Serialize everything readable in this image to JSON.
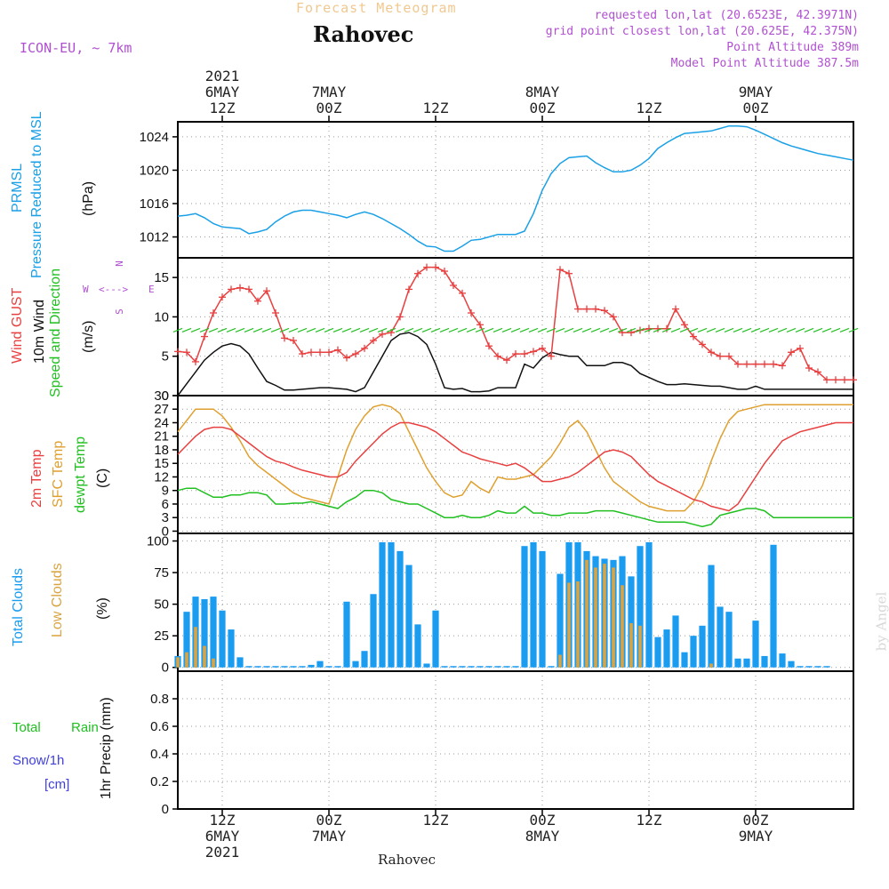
{
  "header": {
    "subtitle": "Forecast Meteogram",
    "location": "Rahovec",
    "model": "ICON-EU, ~ 7km",
    "requested": "requested lon,lat (20.6523E, 42.3971N)",
    "gridpoint": "grid point closest lon,lat (20.625E, 42.375N)",
    "point_alt": "Point Altitude 389m",
    "model_alt": "Model Point Altitude 387.5m",
    "watermark": "by Angel",
    "footer": "Rahovec"
  },
  "time_axis": {
    "top_ticks": [
      {
        "line1": "2021",
        "line2": "6MAY",
        "line3": "12Z"
      },
      {
        "line1": "",
        "line2": "7MAY",
        "line3": "00Z"
      },
      {
        "line1": "",
        "line2": "",
        "line3": "12Z"
      },
      {
        "line1": "",
        "line2": "8MAY",
        "line3": "00Z"
      },
      {
        "line1": "",
        "line2": "",
        "line3": "12Z"
      },
      {
        "line1": "",
        "line2": "9MAY",
        "line3": "00Z"
      }
    ],
    "bottom_ticks": [
      {
        "line1": "12Z",
        "line2": "6MAY",
        "line3": "2021"
      },
      {
        "line1": "00Z",
        "line2": "7MAY",
        "line3": ""
      },
      {
        "line1": "12Z",
        "line2": "",
        "line3": ""
      },
      {
        "line1": "00Z",
        "line2": "8MAY",
        "line3": ""
      },
      {
        "line1": "12Z",
        "line2": "",
        "line3": ""
      },
      {
        "line1": "00Z",
        "line2": "9MAY",
        "line3": ""
      }
    ],
    "tick_hours": [
      8,
      20,
      32,
      44,
      56,
      68
    ],
    "hours_range": [
      3,
      79
    ]
  },
  "panels": {
    "pressure": {
      "label1": "PRMSL",
      "label2": "Pressure Reduced to MSL",
      "unit": "(hPa)"
    },
    "wind": {
      "label1": "Wind GUST",
      "label2": "10m Wind",
      "label3": "Speed and Direction",
      "unit": "(m/s)",
      "compass_n": "N",
      "compass_s": "S",
      "compass_w": "W",
      "compass_e": "E",
      "compass_arrow": "<--->"
    },
    "temp": {
      "label1": "2m Temp",
      "label2": "SFC Temp",
      "label3": "dewpt Temp",
      "unit": "(C)"
    },
    "clouds": {
      "label1": "Total Clouds",
      "label2": "Low Clouds",
      "unit": "(%)"
    },
    "precip": {
      "label1": "Total",
      "label1b": "Rain",
      "label2": "Snow/1h",
      "label3": "[cm]",
      "unit": "1hr Precip (mm)"
    }
  },
  "colors": {
    "pressure": "#1aa0e6",
    "gust": "#e84040",
    "wind": "#111111",
    "t2m": "#e84040",
    "tsfc": "#e0a030",
    "dewpt": "#20c020",
    "total_clouds": "#1a9cf0",
    "low_clouds": "#d9a441",
    "rain": "#20c020",
    "snow": "#4040e0",
    "direction": "#20c020",
    "meta": "#b050d0"
  },
  "chart_data": [
    {
      "type": "line",
      "title": "PRMSL Pressure Reduced to MSL",
      "ylabel": "hPa",
      "ylim": [
        1009.5,
        1025.8
      ],
      "yticks": [
        1012,
        1016,
        1020,
        1024
      ],
      "x": [
        3,
        4,
        5,
        6,
        7,
        8,
        9,
        10,
        11,
        12,
        13,
        14,
        15,
        16,
        17,
        18,
        19,
        20,
        21,
        22,
        23,
        24,
        25,
        26,
        27,
        28,
        29,
        30,
        31,
        32,
        33,
        34,
        35,
        36,
        37,
        38,
        39,
        40,
        41,
        42,
        43,
        44,
        45,
        46,
        47,
        48,
        49,
        50,
        51,
        52,
        53,
        54,
        55,
        56,
        57,
        58,
        59,
        60,
        61,
        62,
        63,
        64,
        65,
        66,
        67,
        68,
        69,
        70,
        71,
        72,
        73,
        74,
        75,
        76,
        77,
        78,
        79
      ],
      "series": [
        {
          "name": "PRMSL",
          "values": [
            1014.5,
            1014.6,
            1014.8,
            1014.3,
            1013.6,
            1013.2,
            1013.1,
            1013.0,
            1012.4,
            1012.6,
            1012.9,
            1013.8,
            1014.5,
            1015.0,
            1015.2,
            1015.2,
            1015.0,
            1014.8,
            1014.6,
            1014.3,
            1014.7,
            1015.0,
            1014.7,
            1014.2,
            1013.6,
            1013.0,
            1012.3,
            1011.5,
            1010.9,
            1010.8,
            1010.3,
            1010.3,
            1010.9,
            1011.6,
            1011.7,
            1012.0,
            1012.3,
            1012.3,
            1012.3,
            1012.7,
            1014.8,
            1017.6,
            1019.6,
            1020.8,
            1021.5,
            1021.6,
            1021.7,
            1020.9,
            1020.3,
            1019.8,
            1019.8,
            1020.0,
            1020.6,
            1021.4,
            1022.6,
            1023.3,
            1023.9,
            1024.4,
            1024.5,
            1024.6,
            1024.7,
            1025.0,
            1025.3,
            1025.3,
            1025.2,
            1024.8,
            1024.3,
            1023.8,
            1023.3,
            1022.9,
            1022.6,
            1022.3,
            1022.0,
            1021.8,
            1021.6,
            1021.4,
            1021.2
          ]
        }
      ]
    },
    {
      "type": "line",
      "title": "Wind GUST / 10m Wind Speed and Direction",
      "ylabel": "m/s",
      "ylim": [
        0,
        17.5
      ],
      "yticks": [
        0,
        5,
        10,
        15
      ],
      "x": [
        3,
        4,
        5,
        6,
        7,
        8,
        9,
        10,
        11,
        12,
        13,
        14,
        15,
        16,
        17,
        18,
        19,
        20,
        21,
        22,
        23,
        24,
        25,
        26,
        27,
        28,
        29,
        30,
        31,
        32,
        33,
        34,
        35,
        36,
        37,
        38,
        39,
        40,
        41,
        42,
        43,
        44,
        45,
        46,
        47,
        48,
        49,
        50,
        51,
        52,
        53,
        54,
        55,
        56,
        57,
        58,
        59,
        60,
        61,
        62,
        63,
        64,
        65,
        66,
        67,
        68,
        69,
        70,
        71,
        72,
        73,
        74,
        75,
        76,
        77,
        78,
        79
      ],
      "series": [
        {
          "name": "Wind GUST",
          "values": [
            5.6,
            5.5,
            4.3,
            7.5,
            10.5,
            12.5,
            13.5,
            13.7,
            13.5,
            12.0,
            13.3,
            10.5,
            7.3,
            7.0,
            5.3,
            5.5,
            5.5,
            5.5,
            5.8,
            4.8,
            5.3,
            6.0,
            7.0,
            7.8,
            8.0,
            10.0,
            13.5,
            15.5,
            16.3,
            16.3,
            15.8,
            14.0,
            13.0,
            10.5,
            9.0,
            6.3,
            5.0,
            4.5,
            5.3,
            5.3,
            5.6,
            6.0,
            5.0,
            16.0,
            15.5,
            11.0,
            11.0,
            11.0,
            10.8,
            10.0,
            8.0,
            8.0,
            8.3,
            8.5,
            8.5,
            8.5,
            11.0,
            9.0,
            7.5,
            6.5,
            5.5,
            5.0,
            5.0,
            4.0,
            4.0,
            4.0,
            4.0,
            4.0,
            3.8,
            5.5,
            6.0,
            3.5,
            3.0,
            2.0,
            2.0,
            2.0,
            2.0
          ]
        },
        {
          "name": "10m Wind",
          "values": [
            0.0,
            1.5,
            3.0,
            4.5,
            5.5,
            6.3,
            6.6,
            6.3,
            5.3,
            3.5,
            1.8,
            1.3,
            0.7,
            0.7,
            0.8,
            0.9,
            1.0,
            1.0,
            0.9,
            0.8,
            0.5,
            1.0,
            3.0,
            5.0,
            7.0,
            7.8,
            8.0,
            7.5,
            6.5,
            4.0,
            1.0,
            0.8,
            0.9,
            0.5,
            0.5,
            0.6,
            1.0,
            1.0,
            1.0,
            4.0,
            3.5,
            4.8,
            5.5,
            5.2,
            5.0,
            5.0,
            3.8,
            3.8,
            3.8,
            4.2,
            4.2,
            3.8,
            2.8,
            2.3,
            1.8,
            1.4,
            1.4,
            1.5,
            1.4,
            1.3,
            1.2,
            1.2,
            1.0,
            0.8,
            0.8,
            1.2,
            0.8,
            0.8,
            0.8,
            0.8,
            0.8,
            0.8,
            0.8,
            0.8,
            0.8,
            0.8,
            0.8
          ]
        }
      ]
    },
    {
      "type": "line",
      "title": "2m Temp / SFC Temp / dewpt Temp",
      "ylabel": "C",
      "ylim": [
        -0.5,
        30
      ],
      "yticks": [
        0,
        3,
        6,
        9,
        12,
        15,
        18,
        21,
        24,
        27,
        30
      ],
      "x": [
        3,
        4,
        5,
        6,
        7,
        8,
        9,
        10,
        11,
        12,
        13,
        14,
        15,
        16,
        17,
        18,
        19,
        20,
        21,
        22,
        23,
        24,
        25,
        26,
        27,
        28,
        29,
        30,
        31,
        32,
        33,
        34,
        35,
        36,
        37,
        38,
        39,
        40,
        41,
        42,
        43,
        44,
        45,
        46,
        47,
        48,
        49,
        50,
        51,
        52,
        53,
        54,
        55,
        56,
        57,
        58,
        59,
        60,
        61,
        62,
        63,
        64,
        65,
        66,
        67,
        68,
        69,
        70,
        71,
        72,
        73,
        74,
        75,
        76,
        77,
        78,
        79
      ],
      "series": [
        {
          "name": "2m Temp",
          "values": [
            17.0,
            19.0,
            21.0,
            22.5,
            23.0,
            23.0,
            22.5,
            21.0,
            19.5,
            18.0,
            16.5,
            15.5,
            15.0,
            14.2,
            13.5,
            13.0,
            12.5,
            12.0,
            12.0,
            13.0,
            15.5,
            17.5,
            19.5,
            21.5,
            23.0,
            24.0,
            24.0,
            23.5,
            23.0,
            22.0,
            20.5,
            19.0,
            17.5,
            16.8,
            16.0,
            15.5,
            15.0,
            14.5,
            15.0,
            14.0,
            12.5,
            11.0,
            11.0,
            11.5,
            12.0,
            13.0,
            14.5,
            16.0,
            17.5,
            18.0,
            17.5,
            16.5,
            14.5,
            12.5,
            11.0,
            10.0,
            9.0,
            8.0,
            7.0,
            6.5,
            5.5,
            5.0,
            4.5,
            6.0,
            9.0,
            12.0,
            15.0,
            17.5,
            20.0,
            21.0,
            22.0,
            22.5,
            23.0,
            23.5,
            24.0,
            24.0,
            24.0
          ]
        },
        {
          "name": "SFC Temp",
          "values": [
            22.0,
            24.5,
            27.0,
            27.0,
            27.0,
            25.5,
            23.0,
            20.0,
            16.5,
            14.5,
            13.0,
            11.5,
            10.0,
            8.5,
            7.5,
            7.0,
            6.5,
            6.0,
            12.0,
            18.0,
            22.5,
            25.5,
            27.5,
            28.0,
            27.5,
            26.0,
            22.0,
            18.0,
            14.0,
            11.0,
            8.5,
            7.5,
            8.0,
            11.0,
            9.5,
            8.5,
            12.0,
            11.5,
            11.5,
            12.0,
            12.5,
            14.5,
            16.5,
            19.5,
            23.0,
            24.5,
            22.0,
            18.0,
            14.0,
            11.0,
            9.5,
            8.0,
            6.5,
            5.5,
            5.0,
            4.5,
            4.5,
            4.5,
            6.5,
            10.0,
            15.5,
            20.5,
            24.5,
            26.5,
            27.0,
            27.5,
            28.0,
            28.0,
            28.0,
            28.0,
            28.0,
            28.0,
            28.0,
            28.0,
            28.0,
            28.0,
            28.0
          ]
        },
        {
          "name": "dewpt Temp",
          "values": [
            9.0,
            9.5,
            9.5,
            8.5,
            7.5,
            7.5,
            8.0,
            8.0,
            8.5,
            8.5,
            8.0,
            6.0,
            6.0,
            6.2,
            6.2,
            6.5,
            6.0,
            5.5,
            5.0,
            6.5,
            7.5,
            9.0,
            9.0,
            8.5,
            7.0,
            6.5,
            6.0,
            6.0,
            5.0,
            4.0,
            3.0,
            3.0,
            3.5,
            3.0,
            3.0,
            3.5,
            4.5,
            4.0,
            4.0,
            5.5,
            4.0,
            4.0,
            3.5,
            3.5,
            4.0,
            4.0,
            4.0,
            4.5,
            4.5,
            4.5,
            4.0,
            3.5,
            3.0,
            2.5,
            2.0,
            2.0,
            2.0,
            2.0,
            1.5,
            1.0,
            1.5,
            3.5,
            4.0,
            4.5,
            5.0,
            5.0,
            4.5,
            3.0,
            3.0,
            3.0,
            3.0,
            3.0,
            3.0,
            3.0,
            3.0,
            3.0,
            3.0
          ]
        }
      ]
    },
    {
      "type": "bar",
      "title": "Total Clouds / Low Clouds",
      "ylabel": "%",
      "ylim": [
        -3,
        106
      ],
      "yticks": [
        0,
        25,
        50,
        75,
        100
      ],
      "x": [
        3,
        4,
        5,
        6,
        7,
        8,
        9,
        10,
        11,
        12,
        13,
        14,
        15,
        16,
        17,
        18,
        19,
        20,
        21,
        22,
        23,
        24,
        25,
        26,
        27,
        28,
        29,
        30,
        31,
        32,
        33,
        34,
        35,
        36,
        37,
        38,
        39,
        40,
        41,
        42,
        43,
        44,
        45,
        46,
        47,
        48,
        49,
        50,
        51,
        52,
        53,
        54,
        55,
        56,
        57,
        58,
        59,
        60,
        61,
        62,
        63,
        64,
        65,
        66,
        67,
        68,
        69,
        70,
        71,
        72,
        73,
        74,
        75,
        76
      ],
      "series": [
        {
          "name": "Total Clouds",
          "values": [
            9,
            44,
            56,
            54,
            56,
            45,
            30,
            8,
            0,
            0,
            0,
            0,
            0,
            0,
            0,
            2,
            5,
            0,
            0,
            52,
            5,
            13,
            58,
            99,
            99,
            92,
            81,
            34,
            3,
            45,
            0,
            0,
            0,
            0,
            0,
            0,
            0,
            0,
            0,
            96,
            99,
            92,
            0,
            74,
            99,
            99,
            92,
            88,
            86,
            85,
            88,
            72,
            96,
            99,
            24,
            30,
            41,
            12,
            25,
            33,
            81,
            48,
            44,
            7,
            7,
            37,
            9,
            97,
            11,
            5,
            0,
            0,
            0,
            0
          ]
        },
        {
          "name": "Low Clouds",
          "values": [
            8,
            12,
            32,
            17,
            7,
            0,
            0,
            0,
            0,
            0,
            0,
            0,
            0,
            0,
            0,
            0,
            0,
            0,
            0,
            0,
            0,
            0,
            0,
            0,
            0,
            0,
            0,
            0,
            0,
            0,
            0,
            0,
            0,
            0,
            0,
            0,
            0,
            0,
            0,
            0,
            0,
            0,
            0,
            10,
            67,
            68,
            85,
            79,
            82,
            79,
            65,
            35,
            33,
            0,
            0,
            0,
            0,
            0,
            0,
            0,
            3,
            0,
            0,
            0,
            0,
            0,
            0,
            0,
            0,
            0,
            0,
            0,
            0,
            0
          ]
        }
      ]
    },
    {
      "type": "bar",
      "title": "1hr Precip",
      "ylabel": "1hr Precip (mm)",
      "ylim": [
        0,
        1.0
      ],
      "yticks": [
        0,
        0.2,
        0.4,
        0.6,
        0.8
      ],
      "ytick_labels": [
        "0",
        "0.2",
        "0.4",
        "0.6",
        "0.8"
      ],
      "x": [],
      "series": [
        {
          "name": "Total Rain",
          "values": []
        },
        {
          "name": "Snow/1h",
          "values": []
        }
      ]
    }
  ]
}
